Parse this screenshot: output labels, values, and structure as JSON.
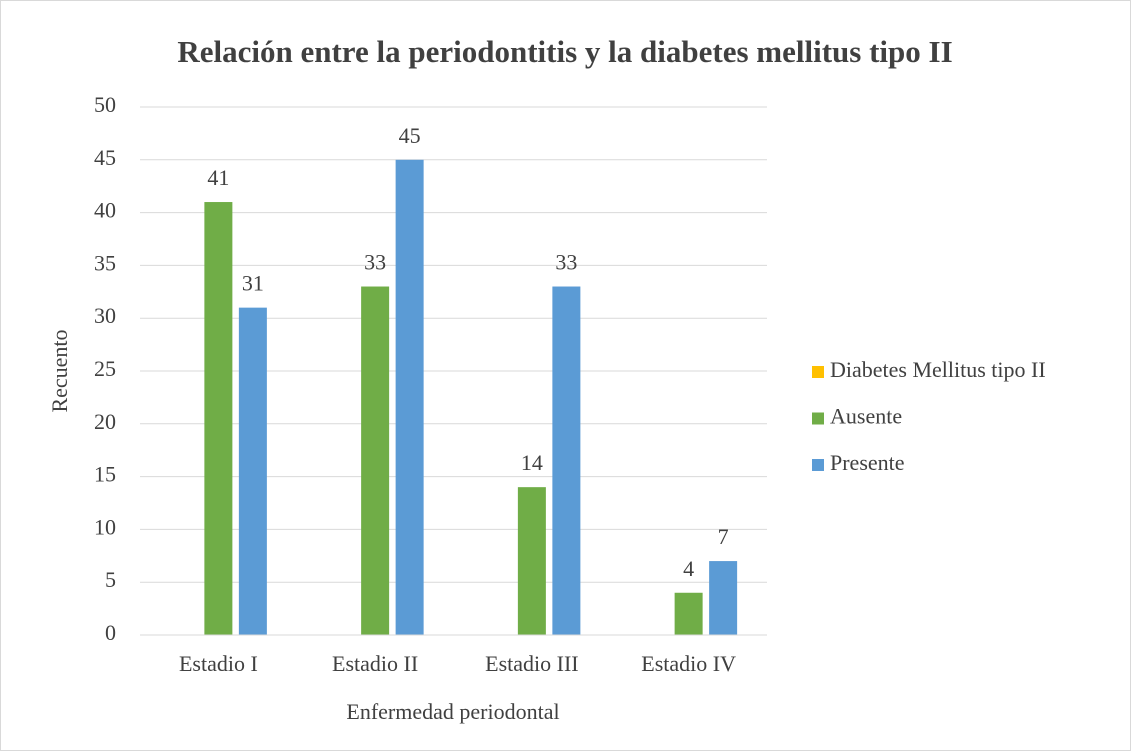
{
  "chart_data": {
    "type": "bar",
    "title": "Relación entre la periodontitis y la diabetes mellitus tipo II",
    "x_label": "Enfermedad periodontal",
    "y_label": "Recuento",
    "categories": [
      "Estadio I",
      "Estadio II",
      "Estadio III",
      "Estadio IV"
    ],
    "series": [
      {
        "name": "Diabetes Mellitus tipo II",
        "color": "#ffc000",
        "values": [
          null,
          null,
          null,
          null
        ]
      },
      {
        "name": "Ausente",
        "color": "#70ad47",
        "values": [
          41,
          33,
          14,
          4
        ]
      },
      {
        "name": "Presente",
        "color": "#5b9bd5",
        "values": [
          31,
          45,
          33,
          7
        ]
      }
    ],
    "ylim": [
      0,
      50
    ],
    "yticks": [
      0,
      5,
      10,
      15,
      20,
      25,
      30,
      35,
      40,
      45,
      50
    ],
    "grid": true,
    "legend": "right"
  }
}
